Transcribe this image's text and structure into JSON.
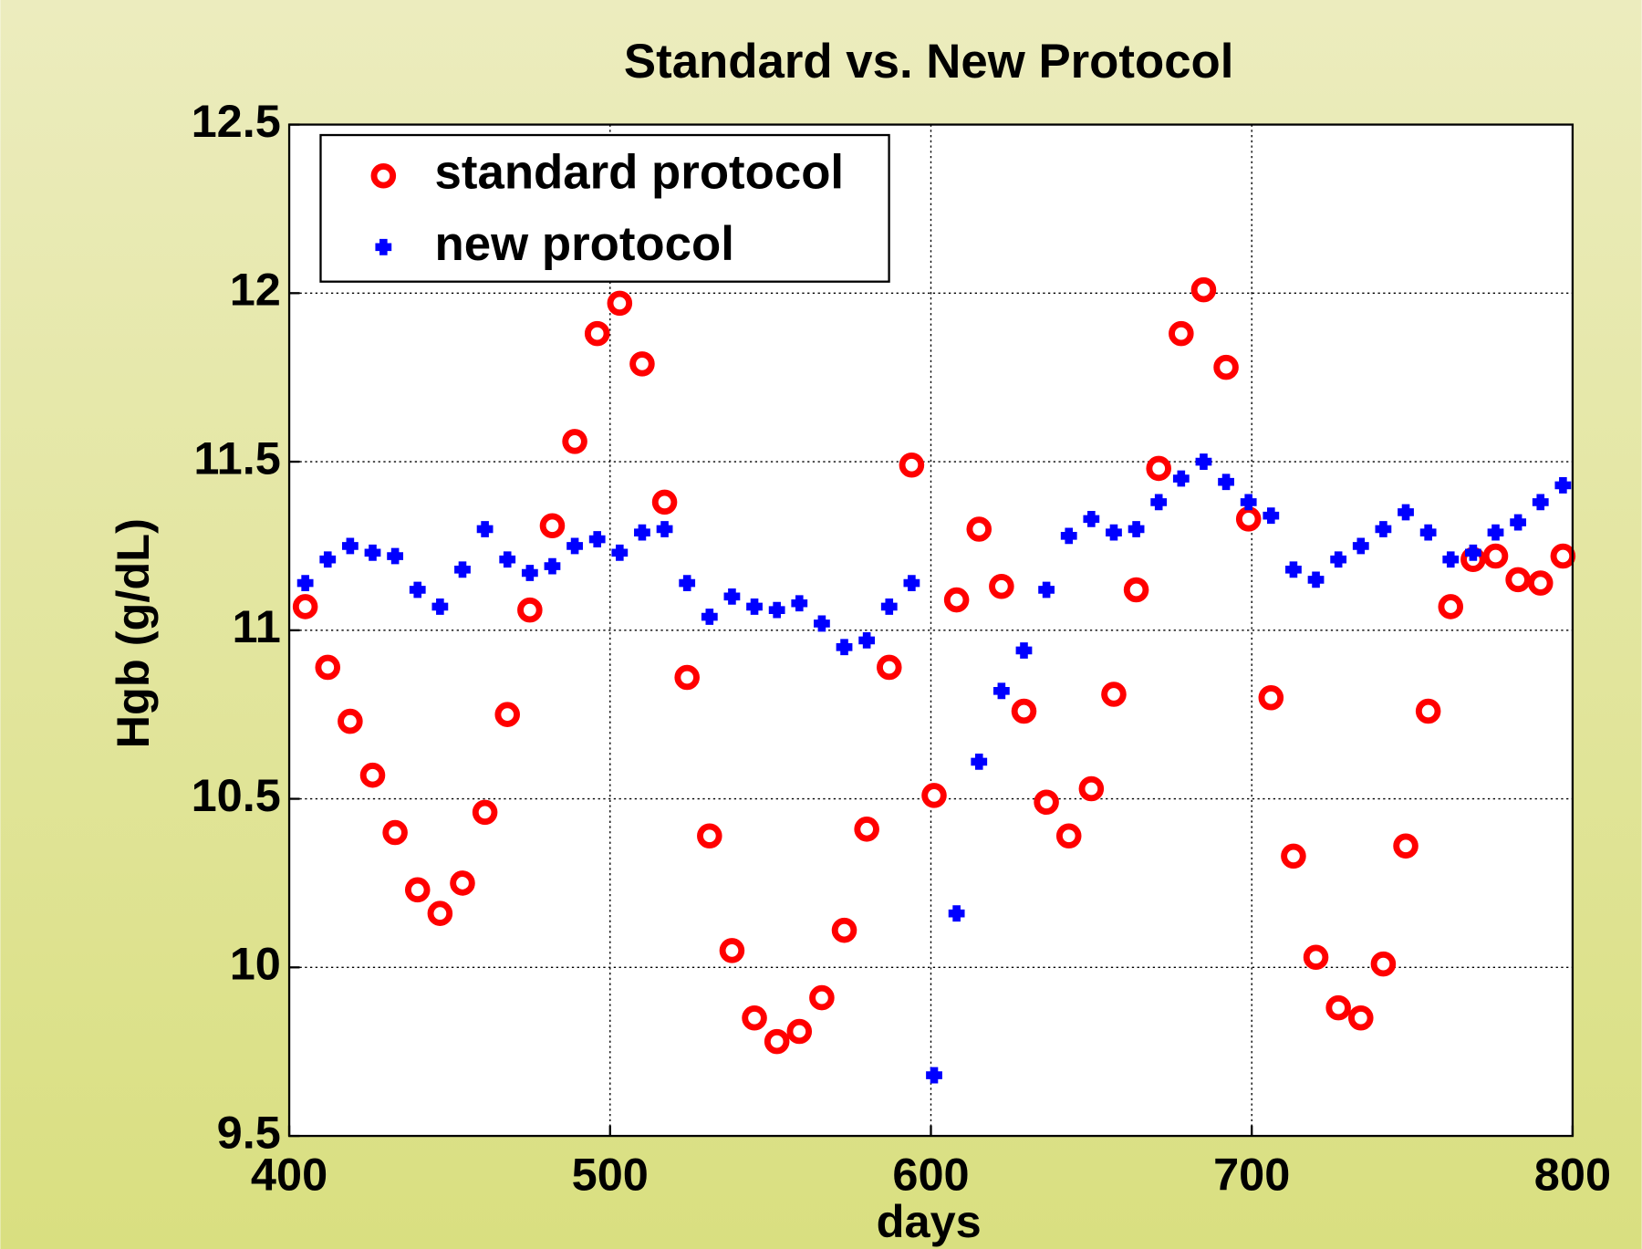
{
  "chart_data": {
    "type": "scatter",
    "title": "Standard vs. New Protocol",
    "x_label": "days",
    "y_label": "Hgb (g/dL)",
    "x": [
      405,
      412,
      419,
      426,
      433,
      440,
      447,
      454,
      461,
      468,
      475,
      482,
      489,
      496,
      503,
      510,
      517,
      524,
      531,
      538,
      545,
      552,
      559,
      566,
      573,
      580,
      587,
      594,
      601,
      608,
      615,
      622,
      629,
      636,
      643,
      650,
      657,
      664,
      671,
      678,
      685,
      692,
      699,
      706,
      713,
      720,
      727,
      734,
      741,
      748,
      755,
      762,
      769,
      776,
      783,
      790,
      797
    ],
    "series": [
      {
        "name": "standard protocol",
        "color": "#ff0000",
        "marker": "o",
        "values": [
          11.07,
          10.89,
          10.73,
          10.57,
          10.4,
          10.23,
          10.16,
          10.25,
          10.46,
          10.75,
          11.06,
          11.31,
          11.56,
          11.88,
          11.97,
          11.79,
          11.38,
          10.86,
          10.39,
          10.05,
          9.85,
          9.78,
          9.81,
          9.91,
          10.11,
          10.41,
          10.89,
          11.49,
          10.51,
          11.09,
          11.3,
          11.13,
          10.76,
          10.49,
          10.39,
          10.53,
          10.81,
          11.12,
          11.48,
          11.88,
          12.01,
          11.78,
          11.33,
          10.8,
          10.33,
          10.03,
          9.88,
          9.85,
          10.01,
          10.36,
          10.76,
          11.07,
          11.21,
          11.22,
          11.15,
          11.14,
          11.22
        ]
      },
      {
        "name": "new protocol",
        "color": "#0000ff",
        "marker": "+",
        "values": [
          11.14,
          11.21,
          11.25,
          11.23,
          11.22,
          11.12,
          11.07,
          11.18,
          11.3,
          11.21,
          11.17,
          11.19,
          11.25,
          11.27,
          11.23,
          11.29,
          11.3,
          11.14,
          11.04,
          11.1,
          11.07,
          11.06,
          11.08,
          11.02,
          10.95,
          10.97,
          11.07,
          11.14,
          9.68,
          10.16,
          10.61,
          10.82,
          10.94,
          11.12,
          11.28,
          11.33,
          11.29,
          11.3,
          11.38,
          11.45,
          11.5,
          11.44,
          11.38,
          11.34,
          11.18,
          11.15,
          11.21,
          11.25,
          11.3,
          11.35,
          11.29,
          11.21,
          11.23,
          11.29,
          11.32,
          11.38,
          11.43
        ]
      }
    ],
    "xlim": [
      400,
      800
    ],
    "xticks": [
      400,
      500,
      600,
      700,
      800
    ],
    "ylim": [
      9.5,
      12.5
    ],
    "yticks": [
      9.5,
      10,
      10.5,
      11,
      11.5,
      12,
      12.5
    ],
    "grid": true,
    "legend": "upper left"
  }
}
